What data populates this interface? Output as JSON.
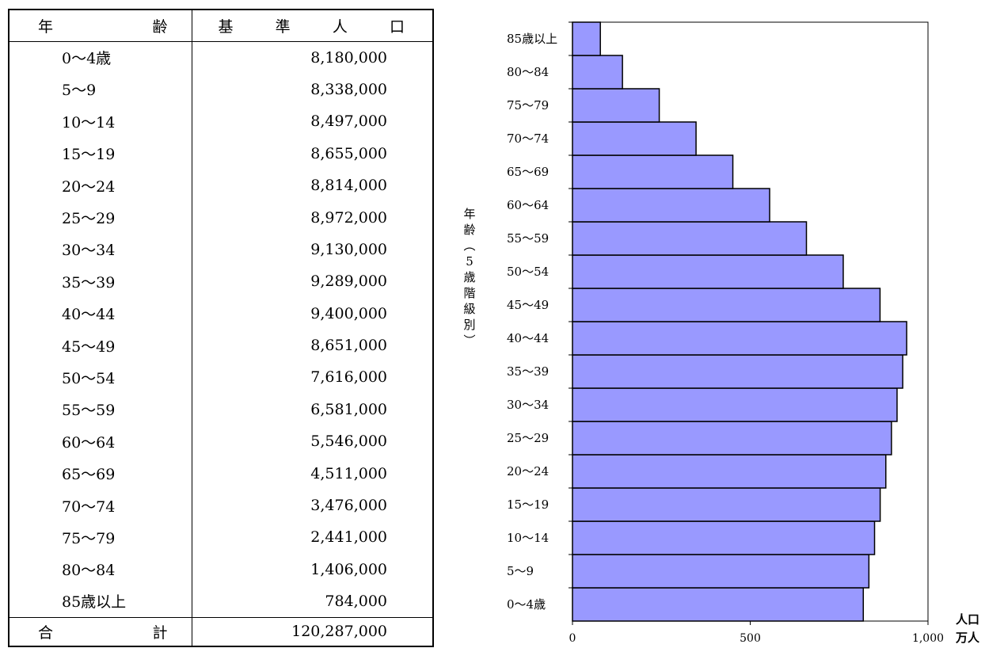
{
  "table": {
    "header": {
      "age_chars": [
        "年",
        "齢"
      ],
      "pop_chars": [
        "基",
        "準",
        "人",
        "口"
      ]
    },
    "rows": [
      {
        "age": "0～4歳",
        "pop": "8,180,000"
      },
      {
        "age": "5～9",
        "pop": "8,338,000"
      },
      {
        "age": "10～14",
        "pop": "8,497,000"
      },
      {
        "age": "15～19",
        "pop": "8,655,000"
      },
      {
        "age": "20～24",
        "pop": "8,814,000"
      },
      {
        "age": "25～29",
        "pop": "8,972,000"
      },
      {
        "age": "30～34",
        "pop": "9,130,000"
      },
      {
        "age": "35～39",
        "pop": "9,289,000"
      },
      {
        "age": "40～44",
        "pop": "9,400,000"
      },
      {
        "age": "45～49",
        "pop": "8,651,000"
      },
      {
        "age": "50～54",
        "pop": "7,616,000"
      },
      {
        "age": "55～59",
        "pop": "6,581,000"
      },
      {
        "age": "60～64",
        "pop": "5,546,000"
      },
      {
        "age": "65～69",
        "pop": "4,511,000"
      },
      {
        "age": "70～74",
        "pop": "3,476,000"
      },
      {
        "age": "75～79",
        "pop": "2,441,000"
      },
      {
        "age": "80～84",
        "pop": "1,406,000"
      },
      {
        "age": "85歳以上",
        "pop": "784,000"
      }
    ],
    "total": {
      "label_chars": [
        "合",
        "計"
      ],
      "pop": "120,287,000"
    }
  },
  "chart_data": {
    "type": "bar",
    "orientation": "horizontal",
    "categories": [
      "0～4歳",
      "5～9",
      "10～14",
      "15～19",
      "20～24",
      "25～29",
      "30～34",
      "35～39",
      "40～44",
      "45～49",
      "50～54",
      "55～59",
      "60～64",
      "65～69",
      "70～74",
      "75～79",
      "80～84",
      "85歳以上"
    ],
    "values": [
      818.0,
      833.8,
      849.7,
      865.5,
      881.4,
      897.2,
      913.0,
      928.9,
      940.0,
      865.1,
      761.6,
      658.1,
      554.6,
      451.1,
      347.6,
      244.1,
      140.6,
      78.4
    ],
    "ylabel_chars": [
      "年",
      "齢",
      "︵",
      "5",
      "歳",
      "階",
      "級",
      "別",
      "︶"
    ],
    "xlabel_lines": [
      "人口",
      "万人"
    ],
    "xlim": [
      0,
      1000
    ],
    "ticks": [
      0,
      500,
      1000
    ],
    "tick_labels": [
      "0",
      "500",
      "1,000"
    ],
    "bar_color": "#9999ff",
    "grid": false,
    "legend": "none"
  }
}
